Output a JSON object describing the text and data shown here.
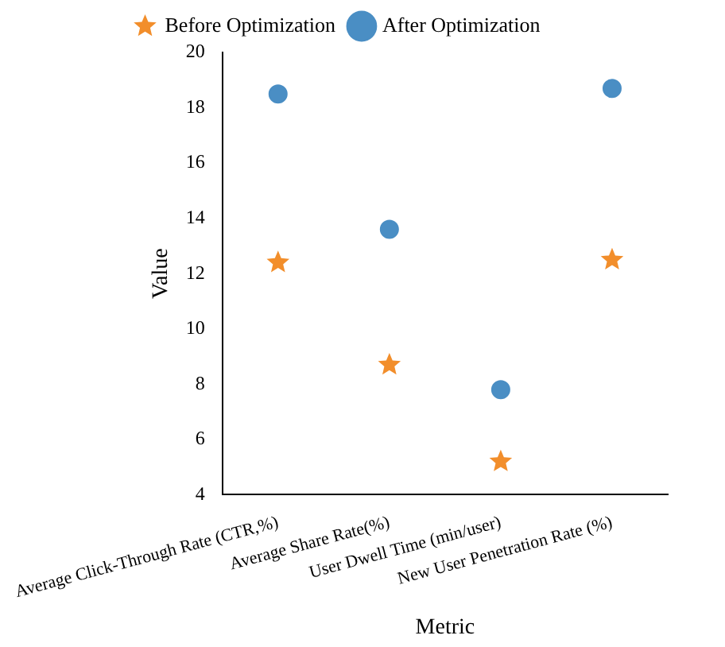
{
  "chart_data": {
    "type": "scatter",
    "xlabel": "Metric",
    "ylabel": "Value",
    "categories": [
      "Average Click-Through Rate (CTR,%)",
      "Average Share Rate(%)",
      "User Dwell Time (min/user)",
      "New User Penetration Rate (%)"
    ],
    "series": [
      {
        "name": "Before Optimization",
        "color": "#f28e2b",
        "marker": "star",
        "values": [
          12.4,
          8.7,
          5.2,
          12.5
        ]
      },
      {
        "name": "After Optimization",
        "color": "#4a8ec4",
        "marker": "circle",
        "values": [
          18.5,
          13.6,
          7.8,
          18.7
        ]
      }
    ],
    "ylim": [
      4,
      20
    ],
    "yticks": [
      4,
      6,
      8,
      10,
      12,
      14,
      16,
      18,
      20
    ],
    "grid": false,
    "legend": "top"
  }
}
